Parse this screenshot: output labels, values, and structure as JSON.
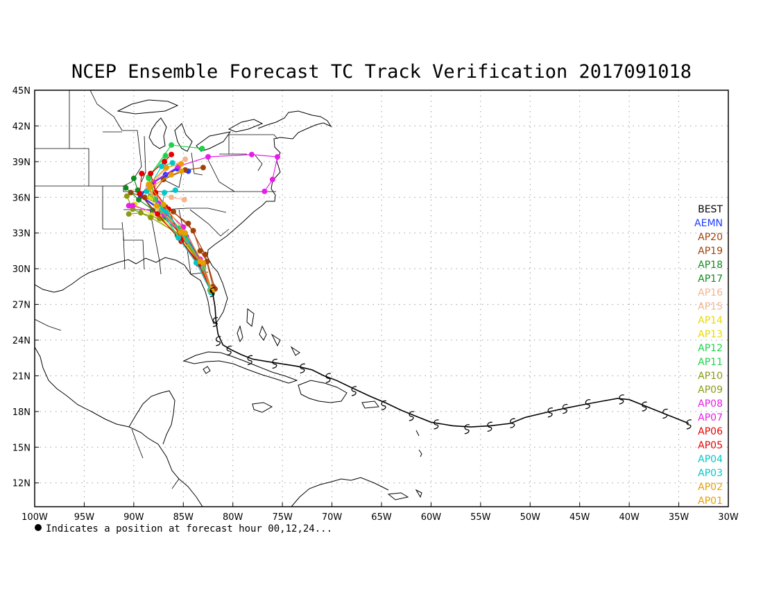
{
  "title": "NCEP Ensemble Forecast TC Track Verification 2017091018",
  "footnote": "Indicates a position at forecast hour 00,12,24...",
  "map": {
    "lon_range": [
      -100,
      -30
    ],
    "lat_range": [
      10,
      45
    ],
    "x_ticks": [
      {
        "lon": -100,
        "label": "100W"
      },
      {
        "lon": -95,
        "label": "95W"
      },
      {
        "lon": -90,
        "label": "90W"
      },
      {
        "lon": -85,
        "label": "85W"
      },
      {
        "lon": -80,
        "label": "80W"
      },
      {
        "lon": -75,
        "label": "75W"
      },
      {
        "lon": -70,
        "label": "70W"
      },
      {
        "lon": -65,
        "label": "65W"
      },
      {
        "lon": -60,
        "label": "60W"
      },
      {
        "lon": -55,
        "label": "55W"
      },
      {
        "lon": -50,
        "label": "50W"
      },
      {
        "lon": -45,
        "label": "45W"
      },
      {
        "lon": -40,
        "label": "40W"
      },
      {
        "lon": -35,
        "label": "35W"
      },
      {
        "lon": -30,
        "label": "30W"
      }
    ],
    "y_ticks": [
      {
        "lat": 45,
        "label": "45N"
      },
      {
        "lat": 42,
        "label": "42N"
      },
      {
        "lat": 39,
        "label": "39N"
      },
      {
        "lat": 36,
        "label": "36N"
      },
      {
        "lat": 33,
        "label": "33N"
      },
      {
        "lat": 30,
        "label": "30N"
      },
      {
        "lat": 27,
        "label": "27N"
      },
      {
        "lat": 24,
        "label": "24N"
      },
      {
        "lat": 21,
        "label": "21N"
      },
      {
        "lat": 18,
        "label": "18N"
      },
      {
        "lat": 15,
        "label": "15N"
      },
      {
        "lat": 12,
        "label": "12N"
      }
    ],
    "grid": true
  },
  "legend": [
    {
      "label": "BEST",
      "color": "#000000"
    },
    {
      "label": "AEMN",
      "color": "#1e3cff"
    },
    {
      "label": "AP20",
      "color": "#a0410a"
    },
    {
      "label": "AP19",
      "color": "#a0410a"
    },
    {
      "label": "AP18",
      "color": "#0f8a1e"
    },
    {
      "label": "AP17",
      "color": "#0f8a1e"
    },
    {
      "label": "AP16",
      "color": "#f5b48c"
    },
    {
      "label": "AP15",
      "color": "#f5b48c"
    },
    {
      "label": "AP14",
      "color": "#e6dc00"
    },
    {
      "label": "AP13",
      "color": "#e6dc00"
    },
    {
      "label": "AP12",
      "color": "#1ed24b"
    },
    {
      "label": "AP11",
      "color": "#1ed24b"
    },
    {
      "label": "AP10",
      "color": "#8c9b14"
    },
    {
      "label": "AP09",
      "color": "#8c9b14"
    },
    {
      "label": "AP08",
      "color": "#e61ee6"
    },
    {
      "label": "AP07",
      "color": "#e61ee6"
    },
    {
      "label": "AP06",
      "color": "#e60000"
    },
    {
      "label": "AP05",
      "color": "#e60000"
    },
    {
      "label": "AP04",
      "color": "#00c8c8"
    },
    {
      "label": "AP03",
      "color": "#00c8c8"
    },
    {
      "label": "AP02",
      "color": "#e6a000"
    },
    {
      "label": "AP01",
      "color": "#e6a000"
    }
  ],
  "chart_data": {
    "type": "track-map",
    "best_track": [
      [
        -34.0,
        17.0
      ],
      [
        -35.5,
        17.5
      ],
      [
        -37.0,
        18.0
      ],
      [
        -38.5,
        18.5
      ],
      [
        -40.0,
        19.0
      ],
      [
        -41.2,
        19.1
      ],
      [
        -42.5,
        18.9
      ],
      [
        -44.5,
        18.6
      ],
      [
        -46.3,
        18.3
      ],
      [
        -48.0,
        18.0
      ],
      [
        -50.5,
        17.5
      ],
      [
        -52.0,
        17.0
      ],
      [
        -54.0,
        16.8
      ],
      [
        -56.0,
        16.7
      ],
      [
        -57.8,
        16.8
      ],
      [
        -60.0,
        17.1
      ],
      [
        -61.5,
        17.6
      ],
      [
        -63.0,
        18.1
      ],
      [
        -64.5,
        18.7
      ],
      [
        -66.2,
        19.3
      ],
      [
        -68.0,
        20.0
      ],
      [
        -69.5,
        20.6
      ],
      [
        -70.8,
        21.0
      ],
      [
        -72.0,
        21.5
      ],
      [
        -73.5,
        21.8
      ],
      [
        -75.0,
        22.0
      ],
      [
        -76.5,
        22.2
      ],
      [
        -78.0,
        22.4
      ],
      [
        -79.2,
        22.8
      ],
      [
        -80.2,
        23.2
      ],
      [
        -81.0,
        23.6
      ],
      [
        -81.5,
        24.5
      ],
      [
        -81.7,
        25.6
      ],
      [
        -81.8,
        26.8
      ],
      [
        -82.0,
        27.8
      ],
      [
        -82.2,
        28.2
      ]
    ],
    "best_symbols": [
      [
        -34.0,
        17.0
      ],
      [
        -36.4,
        17.9
      ],
      [
        -38.5,
        18.5
      ],
      [
        -40.8,
        19.1
      ],
      [
        -44.2,
        18.7
      ],
      [
        -46.5,
        18.3
      ],
      [
        -48.0,
        18.0
      ],
      [
        -51.8,
        17.1
      ],
      [
        -54.1,
        16.8
      ],
      [
        -56.4,
        16.6
      ],
      [
        -59.5,
        17.0
      ],
      [
        -62.0,
        17.7
      ],
      [
        -64.8,
        18.6
      ],
      [
        -67.8,
        19.8
      ],
      [
        -70.4,
        20.9
      ],
      [
        -73.0,
        21.7
      ],
      [
        -75.8,
        22.1
      ],
      [
        -78.3,
        22.4
      ],
      [
        -80.4,
        23.2
      ],
      [
        -81.5,
        24.0
      ],
      [
        -81.8,
        25.6
      ],
      [
        -82.1,
        28.1
      ]
    ],
    "ensemble_tracks": [
      {
        "name": "AEMN",
        "color": "#1e3cff",
        "points": [
          [
            -82.1,
            28.0
          ],
          [
            -83.0,
            30.2
          ],
          [
            -84.7,
            32.7
          ],
          [
            -87.0,
            34.8
          ],
          [
            -89.3,
            36.1
          ],
          [
            -88.5,
            37.0
          ],
          [
            -86.8,
            37.9
          ],
          [
            -85.6,
            38.4
          ],
          [
            -84.5,
            38.2
          ]
        ]
      },
      {
        "name": "AP20",
        "color": "#a0410a",
        "points": [
          [
            -81.8,
            28.3
          ],
          [
            -82.6,
            30.6
          ],
          [
            -83.3,
            31.5
          ],
          [
            -84.0,
            33.2
          ],
          [
            -86.0,
            34.8
          ],
          [
            -88.3,
            36.1
          ],
          [
            -87.0,
            37.5
          ],
          [
            -84.8,
            38.3
          ],
          [
            -83.0,
            38.5
          ]
        ]
      },
      {
        "name": "AP19",
        "color": "#a0410a",
        "points": [
          [
            -82.0,
            28.5
          ],
          [
            -82.8,
            31.2
          ],
          [
            -84.5,
            33.8
          ],
          [
            -86.8,
            35.2
          ],
          [
            -88.9,
            36.0
          ],
          [
            -90.3,
            36.4
          ]
        ]
      },
      {
        "name": "AP18",
        "color": "#0f8a1e",
        "points": [
          [
            -82.2,
            28.2
          ],
          [
            -83.2,
            30.4
          ],
          [
            -84.8,
            32.6
          ],
          [
            -87.0,
            34.3
          ],
          [
            -89.5,
            35.8
          ],
          [
            -90.8,
            36.8
          ]
        ]
      },
      {
        "name": "AP17",
        "color": "#0f8a1e",
        "points": [
          [
            -82.1,
            28.0
          ],
          [
            -83.6,
            30.6
          ],
          [
            -85.6,
            32.8
          ],
          [
            -88.1,
            34.9
          ],
          [
            -89.6,
            36.6
          ],
          [
            -90.0,
            37.6
          ]
        ]
      },
      {
        "name": "AP16",
        "color": "#f5b48c",
        "points": [
          [
            -82.2,
            28.3
          ],
          [
            -83.4,
            30.8
          ],
          [
            -85.0,
            33.0
          ],
          [
            -87.3,
            35.0
          ],
          [
            -88.6,
            36.7
          ],
          [
            -86.8,
            38.4
          ],
          [
            -84.8,
            39.2
          ]
        ]
      },
      {
        "name": "AP15",
        "color": "#f5b48c",
        "points": [
          [
            -82.3,
            28.2
          ],
          [
            -83.5,
            30.5
          ],
          [
            -85.2,
            32.9
          ],
          [
            -87.6,
            35.1
          ],
          [
            -88.0,
            36.4
          ],
          [
            -86.2,
            36.0
          ],
          [
            -84.9,
            35.8
          ]
        ]
      },
      {
        "name": "AP14",
        "color": "#e6dc00",
        "points": [
          [
            -82.2,
            28.1
          ],
          [
            -83.0,
            30.0
          ],
          [
            -84.9,
            32.4
          ],
          [
            -87.4,
            34.5
          ],
          [
            -88.3,
            36.0
          ],
          [
            -88.0,
            37.0
          ]
        ]
      },
      {
        "name": "AP13",
        "color": "#e6dc00",
        "points": [
          [
            -82.3,
            28.2
          ],
          [
            -83.3,
            30.5
          ],
          [
            -85.5,
            32.8
          ],
          [
            -88.2,
            34.5
          ],
          [
            -89.9,
            35.4
          ]
        ]
      },
      {
        "name": "AP12",
        "color": "#1ed24b",
        "points": [
          [
            -82.2,
            28.0
          ],
          [
            -83.1,
            30.4
          ],
          [
            -85.0,
            33.0
          ],
          [
            -87.5,
            35.4
          ],
          [
            -88.5,
            37.7
          ],
          [
            -86.2,
            40.4
          ],
          [
            -83.1,
            40.1
          ]
        ]
      },
      {
        "name": "AP11",
        "color": "#1ed24b",
        "points": [
          [
            -82.2,
            28.1
          ],
          [
            -83.6,
            30.8
          ],
          [
            -85.4,
            33.4
          ],
          [
            -87.8,
            35.8
          ],
          [
            -88.5,
            37.6
          ],
          [
            -86.8,
            39.5
          ]
        ]
      },
      {
        "name": "AP10",
        "color": "#8c9b14",
        "points": [
          [
            -82.3,
            28.2
          ],
          [
            -83.4,
            30.6
          ],
          [
            -85.2,
            32.8
          ],
          [
            -88.3,
            34.3
          ],
          [
            -90.1,
            35.0
          ],
          [
            -90.7,
            36.1
          ]
        ]
      },
      {
        "name": "AP09",
        "color": "#8c9b14",
        "points": [
          [
            -82.2,
            28.1
          ],
          [
            -83.3,
            30.4
          ],
          [
            -85.1,
            32.6
          ],
          [
            -87.4,
            34.2
          ],
          [
            -89.3,
            34.7
          ],
          [
            -90.5,
            34.6
          ]
        ]
      },
      {
        "name": "AP08",
        "color": "#e61ee6",
        "points": [
          [
            -82.2,
            28.2
          ],
          [
            -83.3,
            30.8
          ],
          [
            -85.0,
            33.5
          ],
          [
            -87.5,
            35.5
          ],
          [
            -88.0,
            37.3
          ],
          [
            -85.5,
            38.6
          ],
          [
            -82.5,
            39.4
          ],
          [
            -78.1,
            39.6
          ],
          [
            -75.5,
            39.4
          ],
          [
            -76.0,
            37.5
          ],
          [
            -76.8,
            36.5
          ]
        ]
      },
      {
        "name": "AP07",
        "color": "#e61ee6",
        "points": [
          [
            -82.1,
            28.1
          ],
          [
            -83.0,
            30.3
          ],
          [
            -84.6,
            32.3
          ],
          [
            -86.9,
            34.5
          ],
          [
            -90.1,
            35.3
          ],
          [
            -90.5,
            35.3
          ]
        ]
      },
      {
        "name": "AP06",
        "color": "#e60000",
        "points": [
          [
            -82.2,
            28.2
          ],
          [
            -83.5,
            30.4
          ],
          [
            -85.3,
            32.5
          ],
          [
            -86.5,
            35.0
          ],
          [
            -87.8,
            36.4
          ],
          [
            -88.3,
            38.0
          ],
          [
            -86.9,
            39.0
          ],
          [
            -86.2,
            39.6
          ]
        ]
      },
      {
        "name": "AP05",
        "color": "#e60000",
        "points": [
          [
            -82.2,
            28.1
          ],
          [
            -83.2,
            30.3
          ],
          [
            -85.2,
            32.3
          ],
          [
            -87.6,
            34.6
          ],
          [
            -89.4,
            36.3
          ],
          [
            -89.2,
            38.0
          ]
        ]
      },
      {
        "name": "AP04",
        "color": "#00c8c8",
        "points": [
          [
            -82.3,
            28.2
          ],
          [
            -83.7,
            30.5
          ],
          [
            -85.5,
            32.6
          ],
          [
            -87.2,
            34.9
          ],
          [
            -86.9,
            36.4
          ],
          [
            -85.8,
            36.6
          ]
        ]
      },
      {
        "name": "AP03",
        "color": "#00c8c8",
        "points": [
          [
            -82.2,
            28.0
          ],
          [
            -83.0,
            30.1
          ],
          [
            -84.6,
            32.4
          ],
          [
            -86.7,
            34.8
          ],
          [
            -88.7,
            36.5
          ],
          [
            -87.2,
            38.6
          ],
          [
            -86.1,
            38.9
          ]
        ]
      },
      {
        "name": "AP02",
        "color": "#e6a000",
        "points": [
          [
            -82.1,
            28.1
          ],
          [
            -83.0,
            30.5
          ],
          [
            -84.8,
            33.0
          ],
          [
            -87.0,
            35.4
          ],
          [
            -88.5,
            37.1
          ],
          [
            -86.7,
            38.5
          ],
          [
            -85.2,
            38.8
          ]
        ]
      },
      {
        "name": "AP01",
        "color": "#e6a000",
        "points": [
          [
            -82.2,
            28.2
          ],
          [
            -83.3,
            30.6
          ],
          [
            -85.3,
            33.1
          ],
          [
            -87.7,
            35.3
          ],
          [
            -88.4,
            36.8
          ],
          [
            -86.2,
            37.9
          ],
          [
            -85.2,
            38.2
          ]
        ]
      }
    ]
  }
}
